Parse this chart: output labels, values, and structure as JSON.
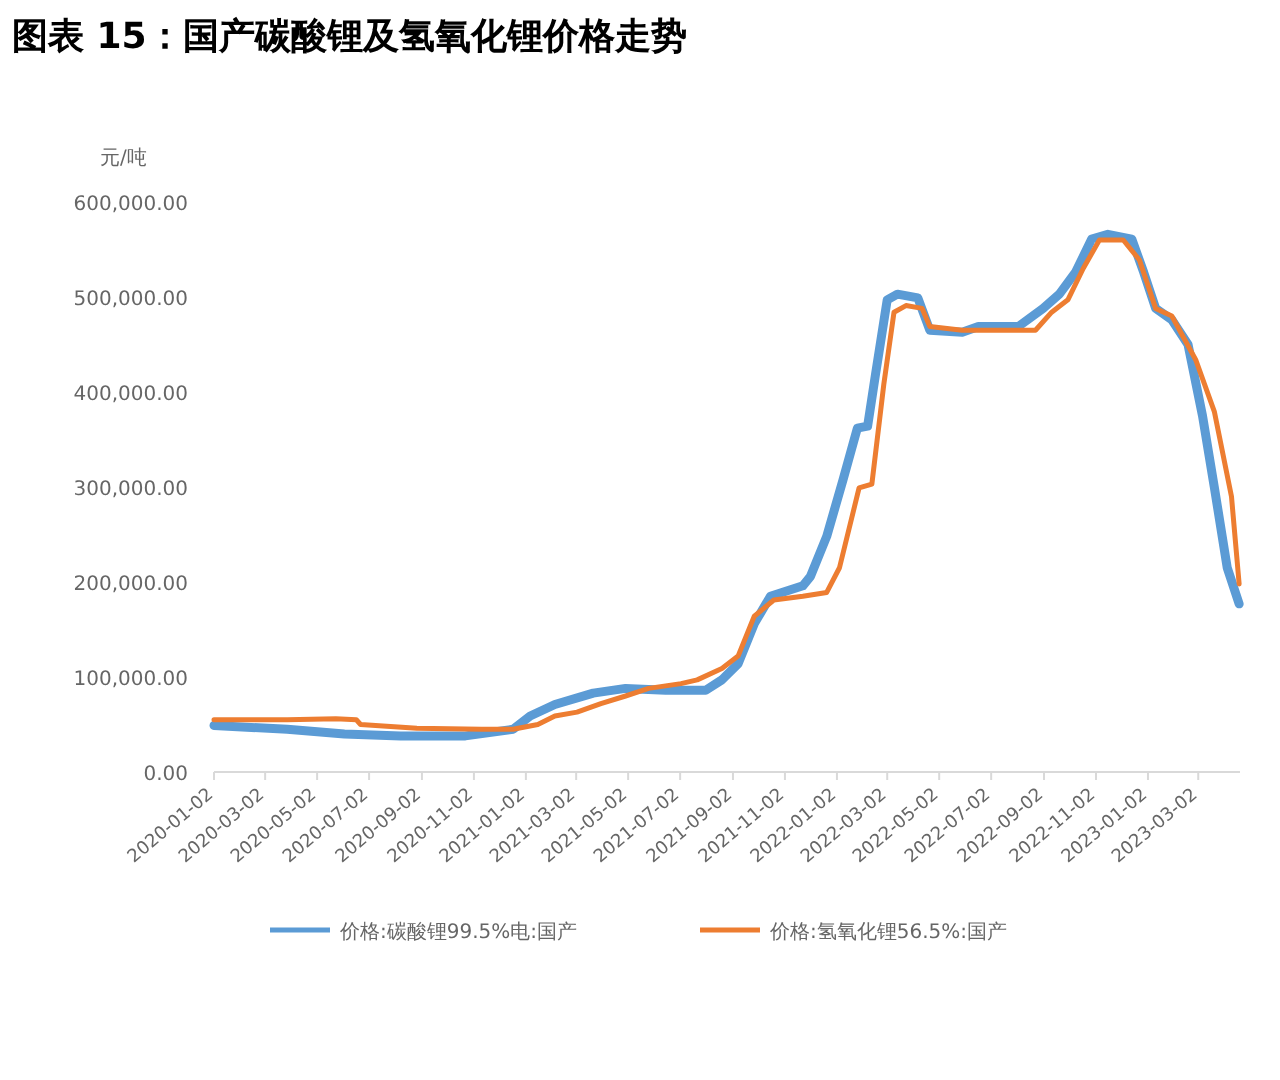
{
  "chart_data": {
    "type": "line",
    "title": "图表 15：国产碳酸锂及氢氧化锂价格走势",
    "ylabel": "元/吨",
    "legend": "bottom",
    "marker": "none",
    "line_style": "solid",
    "xlim": [
      "2020-01-02",
      "2023-04-20"
    ],
    "xticks": [
      "2020-01-02",
      "2020-03-02",
      "2020-05-02",
      "2020-07-02",
      "2020-09-02",
      "2020-11-02",
      "2021-01-02",
      "2021-03-02",
      "2021-05-02",
      "2021-07-02",
      "2021-09-02",
      "2021-11-02",
      "2022-01-02",
      "2022-03-02",
      "2022-05-02",
      "2022-07-02",
      "2022-09-02",
      "2022-11-02",
      "2023-01-02",
      "2023-03-02"
    ],
    "ylim": [
      0,
      600000
    ],
    "yticks": [
      {
        "value": 0,
        "label": "0.00"
      },
      {
        "value": 100000,
        "label": "100,000.00"
      },
      {
        "value": 200000,
        "label": "200,000.00"
      },
      {
        "value": 300000,
        "label": "300,000.00"
      },
      {
        "value": 400000,
        "label": "400,000.00"
      },
      {
        "value": 500000,
        "label": "500,000.00"
      },
      {
        "value": 600000,
        "label": "600,000.00"
      }
    ],
    "series": [
      {
        "name": "价格:碳酸锂99.5%电:国产",
        "color": "#5b9bd5",
        "x": [
          "2020-01-02",
          "2020-03-28",
          "2020-06-03",
          "2020-08-08",
          "2020-10-23",
          "2020-12-18",
          "2021-01-07",
          "2021-02-05",
          "2021-03-22",
          "2021-04-29",
          "2021-06-15",
          "2021-08-01",
          "2021-08-20",
          "2021-09-08",
          "2021-09-27",
          "2021-10-16",
          "2021-11-23",
          "2021-12-02",
          "2021-12-21",
          "2022-01-09",
          "2022-01-26",
          "2022-02-07",
          "2022-02-16",
          "2022-03-02",
          "2022-03-14",
          "2022-04-07",
          "2022-04-21",
          "2022-05-29",
          "2022-06-17",
          "2022-08-03",
          "2022-09-01",
          "2022-09-20",
          "2022-10-09",
          "2022-10-28",
          "2022-11-16",
          "2022-12-14",
          "2022-12-28",
          "2023-01-11",
          "2023-01-30",
          "2023-02-18",
          "2023-03-07",
          "2023-03-21",
          "2023-04-05",
          "2023-04-19"
        ],
        "values": [
          49000,
          45000,
          40000,
          38000,
          38000,
          45000,
          59000,
          71000,
          83000,
          88000,
          86000,
          86000,
          97000,
          114000,
          156000,
          185000,
          196000,
          206000,
          248000,
          307000,
          362000,
          364000,
          417000,
          497000,
          503000,
          499000,
          465000,
          463000,
          469000,
          469000,
          488000,
          503000,
          526000,
          561000,
          566000,
          561000,
          526000,
          488000,
          476000,
          450000,
          375000,
          299000,
          215000,
          177000
        ]
      },
      {
        "name": "价格:氢氧化锂56.5%:国产",
        "color": "#ed7d31",
        "x": [
          "2020-01-02",
          "2020-03-28",
          "2020-05-24",
          "2020-06-17",
          "2020-06-22",
          "2020-08-27",
          "2020-11-11",
          "2020-12-18",
          "2021-01-16",
          "2021-02-05",
          "2021-03-03",
          "2021-03-31",
          "2021-04-29",
          "2021-05-26",
          "2021-07-03",
          "2021-07-22",
          "2021-08-20",
          "2021-09-08",
          "2021-09-27",
          "2021-10-20",
          "2021-11-23",
          "2021-12-21",
          "2022-01-05",
          "2022-01-28",
          "2022-02-12",
          "2022-02-26",
          "2022-03-10",
          "2022-03-24",
          "2022-04-12",
          "2022-04-21",
          "2022-05-29",
          "2022-08-23",
          "2022-09-11",
          "2022-09-30",
          "2022-10-18",
          "2022-11-06",
          "2022-12-04",
          "2022-12-23",
          "2023-01-11",
          "2023-01-30",
          "2023-02-27",
          "2023-03-21",
          "2023-04-10",
          "2023-04-19"
        ],
        "values": [
          55000,
          55000,
          56000,
          55000,
          50000,
          46000,
          45000,
          45000,
          50000,
          59000,
          63000,
          72000,
          80000,
          88000,
          93000,
          97000,
          109000,
          122000,
          164000,
          181000,
          185000,
          189000,
          215000,
          299000,
          303000,
          408000,
          484000,
          491000,
          488000,
          469000,
          465000,
          465000,
          484000,
          497000,
          530000,
          560000,
          560000,
          539000,
          488000,
          480000,
          434000,
          379000,
          290000,
          198000
        ]
      }
    ]
  }
}
